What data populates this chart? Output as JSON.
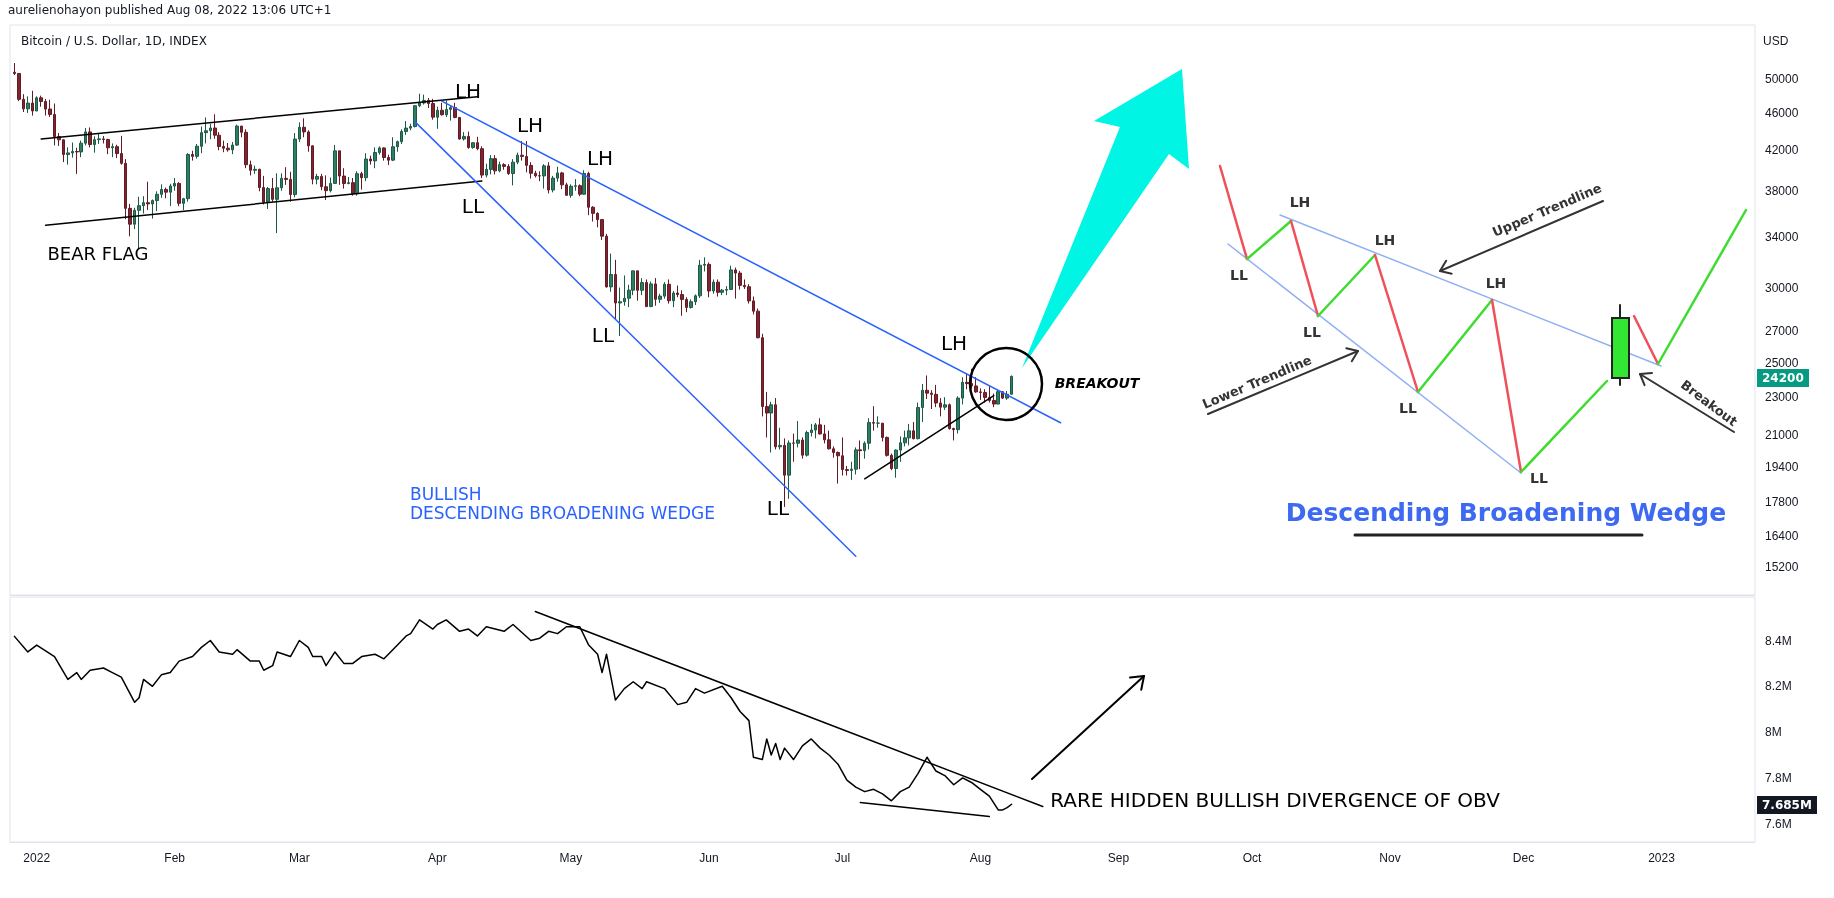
{
  "chart_data": [
    {
      "type": "candlestick",
      "title": "Bitcoin / U.S. Dollar, 1D, INDEX",
      "ylabel": "USD",
      "log": "y",
      "tick_labels": "y",
      "xlim": [
        "2021-12-26",
        "2023-01-22"
      ],
      "ylim": [
        14200,
        57000
      ],
      "yticks": [
        15200,
        16400,
        17800,
        19400,
        21000,
        23000,
        25000,
        27000,
        30000,
        34000,
        38000,
        42000,
        46000,
        50000
      ],
      "x": [
        "2021-12-27",
        "2021-12-28",
        "2021-12-29",
        "2021-12-30",
        "2021-12-31",
        "2022-01-01",
        "2022-01-02",
        "2022-01-03",
        "2022-01-04",
        "2022-01-05",
        "2022-01-06",
        "2022-01-07",
        "2022-01-08",
        "2022-01-09",
        "2022-01-10",
        "2022-01-11",
        "2022-01-12",
        "2022-01-13",
        "2022-01-14",
        "2022-01-15",
        "2022-01-16",
        "2022-01-17",
        "2022-01-18",
        "2022-01-19",
        "2022-01-20",
        "2022-01-21",
        "2022-01-22",
        "2022-01-23",
        "2022-01-24",
        "2022-01-25",
        "2022-01-26",
        "2022-01-27",
        "2022-01-28",
        "2022-01-29",
        "2022-01-30",
        "2022-01-31",
        "2022-02-01",
        "2022-02-02",
        "2022-02-03",
        "2022-02-04",
        "2022-02-05",
        "2022-02-06",
        "2022-02-07",
        "2022-02-08",
        "2022-02-09",
        "2022-02-10",
        "2022-02-11",
        "2022-02-12",
        "2022-02-13",
        "2022-02-14",
        "2022-02-15",
        "2022-02-16",
        "2022-02-17",
        "2022-02-18",
        "2022-02-19",
        "2022-02-20",
        "2022-02-21",
        "2022-02-22",
        "2022-02-23",
        "2022-02-24",
        "2022-02-25",
        "2022-02-26",
        "2022-02-27",
        "2022-02-28",
        "2022-03-01",
        "2022-03-02",
        "2022-03-03",
        "2022-03-04",
        "2022-03-05",
        "2022-03-06",
        "2022-03-07",
        "2022-03-08",
        "2022-03-09",
        "2022-03-10",
        "2022-03-11",
        "2022-03-12",
        "2022-03-13",
        "2022-03-14",
        "2022-03-15",
        "2022-03-16",
        "2022-03-17",
        "2022-03-18",
        "2022-03-19",
        "2022-03-20",
        "2022-03-21",
        "2022-03-22",
        "2022-03-23",
        "2022-03-24",
        "2022-03-25",
        "2022-03-26",
        "2022-03-27",
        "2022-03-28",
        "2022-03-29",
        "2022-03-30",
        "2022-03-31",
        "2022-04-01",
        "2022-04-02",
        "2022-04-03",
        "2022-04-04",
        "2022-04-05",
        "2022-04-06",
        "2022-04-07",
        "2022-04-08",
        "2022-04-09",
        "2022-04-10",
        "2022-04-11",
        "2022-04-12",
        "2022-04-13",
        "2022-04-14",
        "2022-04-15",
        "2022-04-16",
        "2022-04-17",
        "2022-04-18",
        "2022-04-19",
        "2022-04-20",
        "2022-04-21",
        "2022-04-22",
        "2022-04-23",
        "2022-04-24",
        "2022-04-25",
        "2022-04-26",
        "2022-04-27",
        "2022-04-28",
        "2022-04-29",
        "2022-04-30",
        "2022-05-01",
        "2022-05-02",
        "2022-05-03",
        "2022-05-04",
        "2022-05-05",
        "2022-05-06",
        "2022-05-07",
        "2022-05-08",
        "2022-05-09",
        "2022-05-10",
        "2022-05-11",
        "2022-05-12",
        "2022-05-13",
        "2022-05-14",
        "2022-05-15",
        "2022-05-16",
        "2022-05-17",
        "2022-05-18",
        "2022-05-19",
        "2022-05-20",
        "2022-05-21",
        "2022-05-22",
        "2022-05-23",
        "2022-05-24",
        "2022-05-25",
        "2022-05-26",
        "2022-05-27",
        "2022-05-28",
        "2022-05-29",
        "2022-05-30",
        "2022-05-31",
        "2022-06-01",
        "2022-06-02",
        "2022-06-03",
        "2022-06-04",
        "2022-06-05",
        "2022-06-06",
        "2022-06-07",
        "2022-06-08",
        "2022-06-09",
        "2022-06-10",
        "2022-06-11",
        "2022-06-12",
        "2022-06-13",
        "2022-06-14",
        "2022-06-15",
        "2022-06-16",
        "2022-06-17",
        "2022-06-18",
        "2022-06-19",
        "2022-06-20",
        "2022-06-21",
        "2022-06-22",
        "2022-06-23",
        "2022-06-24",
        "2022-06-25",
        "2022-06-26",
        "2022-06-27",
        "2022-06-28",
        "2022-06-29",
        "2022-06-30",
        "2022-07-01",
        "2022-07-02",
        "2022-07-03",
        "2022-07-04",
        "2022-07-05",
        "2022-07-06",
        "2022-07-07",
        "2022-07-08",
        "2022-07-09",
        "2022-07-10",
        "2022-07-11",
        "2022-07-12",
        "2022-07-13",
        "2022-07-14",
        "2022-07-15",
        "2022-07-16",
        "2022-07-17",
        "2022-07-18",
        "2022-07-19",
        "2022-07-20",
        "2022-07-21",
        "2022-07-22",
        "2022-07-23",
        "2022-07-24",
        "2022-07-25",
        "2022-07-26",
        "2022-07-27",
        "2022-07-28",
        "2022-07-29",
        "2022-07-30",
        "2022-07-31",
        "2022-08-01",
        "2022-08-02",
        "2022-08-03",
        "2022-08-04",
        "2022-08-05",
        "2022-08-06",
        "2022-08-07",
        "2022-08-08"
      ],
      "ohlc": [
        [
          50800,
          51950,
          50450,
          50650
        ],
        [
          50650,
          50700,
          47350,
          47550
        ],
        [
          47550,
          48150,
          46100,
          46460
        ],
        [
          46460,
          47900,
          46000,
          47120
        ],
        [
          47120,
          48550,
          45700,
          46220
        ],
        [
          46220,
          47900,
          46200,
          47730
        ],
        [
          47730,
          47980,
          46700,
          47300
        ],
        [
          47300,
          47600,
          45700,
          46440
        ],
        [
          46440,
          47500,
          45550,
          45830
        ],
        [
          45830,
          47070,
          42500,
          43430
        ],
        [
          43430,
          43800,
          42450,
          43080
        ],
        [
          43080,
          43150,
          40800,
          41560
        ],
        [
          41560,
          42300,
          40550,
          41730
        ],
        [
          41730,
          42800,
          41250,
          41870
        ],
        [
          41870,
          42250,
          39650,
          41830
        ],
        [
          41830,
          43000,
          41300,
          42730
        ],
        [
          42730,
          44350,
          42500,
          43920
        ],
        [
          43920,
          44400,
          42300,
          42590
        ],
        [
          42590,
          43450,
          41750,
          43100
        ],
        [
          43100,
          43800,
          42650,
          43180
        ],
        [
          43180,
          43480,
          42700,
          43110
        ],
        [
          43110,
          43200,
          41600,
          42250
        ],
        [
          42250,
          42700,
          41300,
          42370
        ],
        [
          42370,
          42570,
          41200,
          41660
        ],
        [
          41660,
          43500,
          40550,
          40680
        ],
        [
          40680,
          41100,
          35500,
          36450
        ],
        [
          36450,
          36850,
          34050,
          35070
        ],
        [
          35070,
          36500,
          34650,
          36280
        ],
        [
          36280,
          37500,
          32950,
          36690
        ],
        [
          36690,
          37550,
          36000,
          36960
        ],
        [
          36960,
          38900,
          36300,
          36850
        ],
        [
          36850,
          37250,
          35550,
          37150
        ],
        [
          37150,
          38000,
          36200,
          37720
        ],
        [
          37720,
          38650,
          37400,
          38170
        ],
        [
          38170,
          38350,
          37350,
          37920
        ],
        [
          37920,
          38700,
          36650,
          38490
        ],
        [
          38490,
          39250,
          38050,
          38740
        ],
        [
          38740,
          38850,
          36650,
          36900
        ],
        [
          36900,
          37400,
          36300,
          37320
        ],
        [
          37320,
          41700,
          37050,
          41570
        ],
        [
          41570,
          41950,
          40950,
          41380
        ],
        [
          41380,
          42650,
          41150,
          42410
        ],
        [
          42410,
          44500,
          41700,
          43840
        ],
        [
          43840,
          45500,
          42700,
          44040
        ],
        [
          44040,
          44800,
          43150,
          44340
        ],
        [
          44340,
          45850,
          43200,
          43570
        ],
        [
          43570,
          43900,
          42000,
          42390
        ],
        [
          42390,
          43000,
          41800,
          42210
        ],
        [
          42210,
          42750,
          41850,
          42050
        ],
        [
          42050,
          42850,
          41600,
          42530
        ],
        [
          42530,
          44700,
          42450,
          44550
        ],
        [
          44550,
          44550,
          43350,
          43880
        ],
        [
          43880,
          44200,
          40200,
          40540
        ],
        [
          40540,
          40950,
          39500,
          40000
        ],
        [
          40000,
          40450,
          39650,
          40090
        ],
        [
          40090,
          40150,
          38000,
          38350
        ],
        [
          38350,
          39450,
          36800,
          37010
        ],
        [
          37010,
          38400,
          36400,
          38250
        ],
        [
          38250,
          39250,
          37050,
          37260
        ],
        [
          37260,
          39700,
          34320,
          38330
        ],
        [
          38330,
          39700,
          38050,
          39220
        ],
        [
          39220,
          40300,
          38600,
          39120
        ],
        [
          39120,
          39850,
          37050,
          37700
        ],
        [
          37700,
          43800,
          37450,
          43160
        ],
        [
          43160,
          44950,
          42850,
          44420
        ],
        [
          44420,
          45400,
          43350,
          43920
        ],
        [
          43920,
          44100,
          41850,
          42450
        ],
        [
          42450,
          42500,
          38650,
          39140
        ],
        [
          39140,
          39650,
          38650,
          39400
        ],
        [
          39400,
          39650,
          38100,
          38420
        ],
        [
          38420,
          39500,
          37200,
          38060
        ],
        [
          38060,
          39300,
          37900,
          38740
        ],
        [
          38740,
          42550,
          38700,
          41940
        ],
        [
          41940,
          41950,
          38600,
          39440
        ],
        [
          39440,
          40200,
          38250,
          38730
        ],
        [
          38730,
          39350,
          38650,
          38810
        ],
        [
          38810,
          39250,
          37600,
          37780
        ],
        [
          37780,
          39900,
          37600,
          39670
        ],
        [
          39670,
          39850,
          38150,
          39280
        ],
        [
          39280,
          41700,
          38950,
          41110
        ],
        [
          41110,
          41450,
          40550,
          40920
        ],
        [
          40920,
          42300,
          40200,
          41770
        ],
        [
          41770,
          42400,
          41550,
          42240
        ],
        [
          42240,
          42300,
          40950,
          41260
        ],
        [
          41260,
          41550,
          40500,
          41000
        ],
        [
          41000,
          43350,
          40900,
          42360
        ],
        [
          42360,
          43000,
          41850,
          42890
        ],
        [
          42890,
          44200,
          42650,
          43960
        ],
        [
          43960,
          45100,
          43600,
          44330
        ],
        [
          44330,
          44800,
          44100,
          44500
        ],
        [
          44500,
          46900,
          44400,
          46820
        ],
        [
          46820,
          48200,
          46650,
          47130
        ],
        [
          47130,
          48100,
          46950,
          47430
        ],
        [
          47430,
          47700,
          46550,
          47070
        ],
        [
          47070,
          47600,
          45250,
          45530
        ],
        [
          45530,
          46700,
          44250,
          46300
        ],
        [
          46300,
          47150,
          45700,
          45800
        ],
        [
          45800,
          47400,
          45550,
          46400
        ],
        [
          46400,
          46900,
          45150,
          46600
        ],
        [
          46600,
          47150,
          45400,
          45500
        ],
        [
          45500,
          45500,
          43100,
          43170
        ],
        [
          43170,
          43900,
          43000,
          43440
        ],
        [
          43440,
          43950,
          42150,
          42290
        ],
        [
          42290,
          42800,
          42150,
          42780
        ],
        [
          42780,
          43400,
          42000,
          42160
        ],
        [
          42160,
          42400,
          39250,
          39530
        ],
        [
          39530,
          40650,
          39300,
          40080
        ],
        [
          40080,
          41500,
          39600,
          41150
        ],
        [
          41150,
          41500,
          39600,
          39940
        ],
        [
          39940,
          40850,
          39800,
          40550
        ],
        [
          40550,
          40700,
          40050,
          40380
        ],
        [
          40380,
          40600,
          39550,
          39680
        ],
        [
          39680,
          41100,
          38550,
          40800
        ],
        [
          40800,
          41750,
          40600,
          41500
        ],
        [
          41500,
          42950,
          40950,
          41370
        ],
        [
          41370,
          42950,
          39800,
          40480
        ],
        [
          40480,
          40800,
          39200,
          39710
        ],
        [
          39710,
          39950,
          39300,
          39470
        ],
        [
          39470,
          39900,
          38950,
          39450
        ],
        [
          39450,
          40600,
          38250,
          40430
        ],
        [
          40430,
          40800,
          37800,
          38120
        ],
        [
          38120,
          39450,
          37900,
          39240
        ],
        [
          39240,
          40350,
          38900,
          39740
        ],
        [
          39740,
          39850,
          38200,
          38600
        ],
        [
          38600,
          38800,
          37600,
          37630
        ],
        [
          37630,
          38650,
          37400,
          38470
        ],
        [
          38470,
          39150,
          38050,
          38520
        ],
        [
          38520,
          38650,
          37550,
          37730
        ],
        [
          37730,
          40000,
          37700,
          39690
        ],
        [
          39690,
          39850,
          35850,
          36550
        ],
        [
          36550,
          36650,
          35300,
          36010
        ],
        [
          36010,
          36100,
          34800,
          35470
        ],
        [
          35470,
          35500,
          33750,
          34060
        ],
        [
          34060,
          34250,
          30050,
          30100
        ],
        [
          30100,
          32650,
          29750,
          31020
        ],
        [
          31020,
          32150,
          27800,
          28940
        ],
        [
          28940,
          30050,
          26700,
          29030
        ],
        [
          29030,
          30950,
          28750,
          29280
        ],
        [
          29280,
          30250,
          28650,
          29860
        ],
        [
          29860,
          31300,
          29500,
          31300
        ],
        [
          31300,
          31300,
          29100,
          29850
        ],
        [
          29850,
          30750,
          29500,
          30420
        ],
        [
          30420,
          30650,
          28650,
          28690
        ],
        [
          28690,
          30500,
          28650,
          30320
        ],
        [
          30320,
          30750,
          28750,
          29200
        ],
        [
          29200,
          29600,
          28950,
          29430
        ],
        [
          29430,
          30450,
          29250,
          30290
        ],
        [
          30290,
          30650,
          28900,
          29100
        ],
        [
          29100,
          29800,
          28650,
          29650
        ],
        [
          29650,
          30200,
          29350,
          29540
        ],
        [
          29540,
          29850,
          28050,
          29190
        ],
        [
          29190,
          29350,
          28300,
          28630
        ],
        [
          28630,
          29200,
          28550,
          29030
        ],
        [
          29030,
          29550,
          28800,
          29450
        ],
        [
          29450,
          32150,
          29300,
          31730
        ],
        [
          31730,
          32350,
          31250,
          31800
        ],
        [
          31800,
          31950,
          29350,
          29800
        ],
        [
          29800,
          30650,
          29600,
          30450
        ],
        [
          30450,
          30650,
          29400,
          29700
        ],
        [
          29700,
          29950,
          29500,
          29860
        ],
        [
          29860,
          30150,
          29500,
          29910
        ],
        [
          29910,
          31700,
          29900,
          31370
        ],
        [
          31370,
          31550,
          29250,
          31130
        ],
        [
          31130,
          31300,
          29900,
          30210
        ],
        [
          30210,
          30650,
          29950,
          30110
        ],
        [
          30110,
          30300,
          28900,
          29090
        ],
        [
          29090,
          29400,
          28150,
          28370
        ],
        [
          28370,
          28550,
          26550,
          26590
        ],
        [
          26590,
          26850,
          21950,
          22480
        ],
        [
          22480,
          23300,
          20850,
          22130
        ],
        [
          22130,
          22750,
          20100,
          22580
        ],
        [
          22580,
          22950,
          20250,
          20380
        ],
        [
          20380,
          21350,
          20250,
          20450
        ],
        [
          20450,
          20800,
          17600,
          19020
        ],
        [
          19020,
          20700,
          17950,
          20570
        ],
        [
          20570,
          21050,
          19650,
          20560
        ],
        [
          20560,
          21700,
          20350,
          20720
        ],
        [
          20720,
          20850,
          19800,
          19970
        ],
        [
          19970,
          21200,
          19900,
          21100
        ],
        [
          21100,
          21550,
          20900,
          21230
        ],
        [
          21230,
          21600,
          20800,
          21500
        ],
        [
          21500,
          21850,
          21000,
          21030
        ],
        [
          21030,
          21500,
          20550,
          20730
        ],
        [
          20730,
          21200,
          20250,
          20280
        ],
        [
          20280,
          20400,
          19850,
          20100
        ],
        [
          20100,
          20150,
          18630,
          19940
        ],
        [
          19940,
          20850,
          19000,
          19280
        ],
        [
          19280,
          19450,
          19000,
          19240
        ],
        [
          19240,
          19650,
          18800,
          19300
        ],
        [
          19300,
          20350,
          19050,
          20230
        ],
        [
          20230,
          20700,
          19300,
          20190
        ],
        [
          20190,
          20650,
          19800,
          20560
        ],
        [
          20560,
          21850,
          20250,
          21620
        ],
        [
          21620,
          22500,
          21200,
          21590
        ],
        [
          21590,
          21950,
          21350,
          21590
        ],
        [
          21590,
          21600,
          20650,
          20850
        ],
        [
          20850,
          20900,
          19900,
          19960
        ],
        [
          19960,
          20050,
          19250,
          19330
        ],
        [
          19330,
          20250,
          18900,
          20220
        ],
        [
          20220,
          20900,
          19650,
          20580
        ],
        [
          20580,
          21200,
          20400,
          20830
        ],
        [
          20830,
          21550,
          20450,
          21190
        ],
        [
          21190,
          21650,
          20750,
          20790
        ],
        [
          20790,
          22700,
          20750,
          22430
        ],
        [
          22430,
          23750,
          21650,
          23390
        ],
        [
          23390,
          24250,
          22900,
          23230
        ],
        [
          23230,
          23400,
          22350,
          23160
        ],
        [
          23160,
          23700,
          22450,
          22680
        ],
        [
          22680,
          22950,
          21950,
          22450
        ],
        [
          22450,
          23000,
          22300,
          22580
        ],
        [
          22580,
          22650,
          21250,
          21310
        ],
        [
          21310,
          21350,
          20700,
          21250
        ],
        [
          21250,
          23050,
          21050,
          22950
        ],
        [
          22950,
          24150,
          22600,
          23850
        ],
        [
          23850,
          24400,
          23450,
          23780
        ],
        [
          23780,
          24650,
          23500,
          23640
        ],
        [
          23640,
          24150,
          23250,
          23300
        ],
        [
          23300,
          23500,
          22850,
          23270
        ],
        [
          23270,
          23450,
          22700,
          22990
        ],
        [
          22990,
          23650,
          22700,
          22820
        ],
        [
          22820,
          23200,
          22450,
          22620
        ],
        [
          22620,
          23450,
          22600,
          23310
        ],
        [
          23310,
          23350,
          22900,
          22950
        ],
        [
          22950,
          23350,
          22850,
          23170
        ],
        [
          23170,
          24250,
          23150,
          24200
        ]
      ],
      "series": [
        {
          "type": "line",
          "color": "#000000",
          "x": [
            "2022-01-02",
            "2022-04-10"
          ],
          "values": [
            43180,
            47850
          ]
        },
        {
          "type": "line",
          "color": "#000000",
          "x": [
            "2022-01-03",
            "2022-04-11"
          ],
          "values": [
            34990,
            38960
          ]
        },
        {
          "type": "line",
          "color": "#2962ff",
          "x": [
            "2022-04-02",
            "2022-08-19"
          ],
          "values": [
            47340,
            21610
          ]
        },
        {
          "type": "line",
          "color": "#2962ff",
          "x": [
            "2022-03-27",
            "2022-07-04"
          ],
          "values": [
            45010,
            15610
          ]
        },
        {
          "type": "line",
          "color": "#000000",
          "x": [
            "2022-07-06",
            "2022-08-04"
          ],
          "values": [
            18850,
            23090
          ]
        }
      ],
      "annotations": [
        "aurelienohayon published Aug 08, 2022 13:06 UTC+1",
        "BEAR FLAG",
        "BULLISH",
        "DESCENDING BROADENING WEDGE",
        "BREAKOUT",
        "LH",
        "LL",
        "LH",
        "LH",
        "LL",
        "LL",
        "LH",
        "24200",
        "LH",
        "LH",
        "LH",
        "LL",
        "LL",
        "LL",
        "LL",
        "Upper Trendline",
        "Lower Trendline",
        "Breakout",
        "Descending Broadening Wedge"
      ]
    },
    {
      "type": "line",
      "xlim": [
        "2021-12-26",
        "2023-01-22"
      ],
      "ylim": [
        7520000,
        8590000
      ],
      "xticks": [
        {
          "value": "2022-01-01",
          "label": "2022"
        },
        {
          "value": "2022-02-01",
          "label": "Feb"
        },
        {
          "value": "2022-03-01",
          "label": "Mar"
        },
        {
          "value": "2022-04-01",
          "label": "Apr"
        },
        {
          "value": "2022-05-01",
          "label": "May"
        },
        {
          "value": "2022-06-01",
          "label": "Jun"
        },
        {
          "value": "2022-07-01",
          "label": "Jul"
        },
        {
          "value": "2022-08-01",
          "label": "Aug"
        },
        {
          "value": "2022-09-01",
          "label": "Sep"
        },
        {
          "value": "2022-10-01",
          "label": "Oct"
        },
        {
          "value": "2022-11-01",
          "label": "Nov"
        },
        {
          "value": "2022-12-01",
          "label": "Dec"
        },
        {
          "value": "2023-01-01",
          "label": "2023"
        }
      ],
      "yticks": [
        {
          "value": 7600000,
          "label": "7.6M"
        },
        {
          "value": 7800000,
          "label": "7.8M"
        },
        {
          "value": 8000000,
          "label": "8M"
        },
        {
          "value": 8200000,
          "label": "8.2M"
        },
        {
          "value": 8400000,
          "label": "8.4M"
        }
      ],
      "series": [
        {
          "color": "#000000",
          "x": [
            "2021-12-27",
            "2021-12-30",
            "2022-01-01",
            "2022-01-05",
            "2022-01-08",
            "2022-01-10",
            "2022-01-11",
            "2022-01-13",
            "2022-01-16",
            "2022-01-18",
            "2022-01-20",
            "2022-01-23",
            "2022-01-24",
            "2022-01-25",
            "2022-01-27",
            "2022-01-29",
            "2022-01-31",
            "2022-02-02",
            "2022-02-05",
            "2022-02-07",
            "2022-02-09",
            "2022-02-11",
            "2022-02-14",
            "2022-02-15",
            "2022-02-18",
            "2022-02-20",
            "2022-02-21",
            "2022-02-23",
            "2022-02-24",
            "2022-02-27",
            "2022-03-01",
            "2022-03-03",
            "2022-03-04",
            "2022-03-06",
            "2022-03-07",
            "2022-03-09",
            "2022-03-11",
            "2022-03-13",
            "2022-03-15",
            "2022-03-18",
            "2022-03-20",
            "2022-03-22",
            "2022-03-25",
            "2022-03-26",
            "2022-03-28",
            "2022-03-31",
            "2022-04-01",
            "2022-04-03",
            "2022-04-06",
            "2022-04-08",
            "2022-04-10",
            "2022-04-12",
            "2022-04-16",
            "2022-04-18",
            "2022-04-22",
            "2022-04-24",
            "2022-04-26",
            "2022-04-28",
            "2022-04-30",
            "2022-05-03",
            "2022-05-05",
            "2022-05-07",
            "2022-05-08",
            "2022-05-09",
            "2022-05-11",
            "2022-05-13",
            "2022-05-15",
            "2022-05-17",
            "2022-05-18",
            "2022-05-22",
            "2022-05-25",
            "2022-05-27",
            "2022-05-29",
            "2022-05-31",
            "2022-06-04",
            "2022-06-06",
            "2022-06-08",
            "2022-06-10",
            "2022-06-11",
            "2022-06-13",
            "2022-06-14",
            "2022-06-15",
            "2022-06-16",
            "2022-06-17",
            "2022-06-18",
            "2022-06-20",
            "2022-06-22",
            "2022-06-24",
            "2022-06-26",
            "2022-06-28",
            "2022-06-30",
            "2022-07-02",
            "2022-07-04",
            "2022-07-06",
            "2022-07-08",
            "2022-07-10",
            "2022-07-12",
            "2022-07-14",
            "2022-07-16",
            "2022-07-18",
            "2022-07-20",
            "2022-07-22",
            "2022-07-24",
            "2022-07-26",
            "2022-07-28",
            "2022-07-30",
            "2022-08-01",
            "2022-08-03",
            "2022-08-05",
            "2022-08-06",
            "2022-08-07",
            "2022-08-08"
          ],
          "values": [
            8418000,
            8350000,
            8380000,
            8330000,
            8230000,
            8260000,
            8230000,
            8270000,
            8280000,
            8260000,
            8240000,
            8130000,
            8150000,
            8230000,
            8200000,
            8250000,
            8260000,
            8310000,
            8330000,
            8370000,
            8400000,
            8350000,
            8340000,
            8360000,
            8310000,
            8310000,
            8270000,
            8290000,
            8350000,
            8330000,
            8400000,
            8370000,
            8330000,
            8330000,
            8290000,
            8350000,
            8300000,
            8300000,
            8330000,
            8340000,
            8320000,
            8360000,
            8420000,
            8430000,
            8490000,
            8450000,
            8470000,
            8490000,
            8440000,
            8450000,
            8420000,
            8460000,
            8440000,
            8470000,
            8400000,
            8410000,
            8440000,
            8430000,
            8460000,
            8460000,
            8380000,
            8340000,
            8260000,
            8340000,
            8140000,
            8190000,
            8220000,
            8190000,
            8220000,
            8190000,
            8120000,
            8130000,
            8190000,
            8170000,
            8200000,
            8150000,
            8090000,
            8050000,
            7890000,
            7880000,
            7970000,
            7900000,
            7950000,
            7880000,
            7930000,
            7880000,
            7940000,
            7970000,
            7930000,
            7900000,
            7860000,
            7790000,
            7760000,
            7740000,
            7750000,
            7730000,
            7700000,
            7740000,
            7760000,
            7820000,
            7890000,
            7830000,
            7810000,
            7770000,
            7800000,
            7780000,
            7750000,
            7720000,
            7660000,
            7660000,
            7670000,
            7685000
          ]
        },
        {
          "color": "#000000",
          "x": [
            "2022-04-23",
            "2022-08-15"
          ],
          "values": [
            8527000,
            7675000
          ]
        },
        {
          "color": "#000000",
          "x": [
            "2022-07-05",
            "2022-08-03"
          ],
          "values": [
            7693000,
            7631000
          ]
        }
      ],
      "annotations": [
        "RARE HIDDEN BULLISH DIVERGENCE OF OBV",
        "7.685M"
      ]
    }
  ]
}
